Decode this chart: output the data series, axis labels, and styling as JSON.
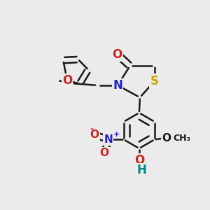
{
  "background_color": "#ebebeb",
  "bond_color": "#1a1a1a",
  "bond_width": 1.8,
  "figsize": [
    3.0,
    3.0
  ],
  "dpi": 100,
  "colors": {
    "S": "#c8a800",
    "N": "#2222cc",
    "O": "#cc2222",
    "O_meth": "#1a1a1a",
    "H": "#008888",
    "C": "#1a1a1a"
  }
}
